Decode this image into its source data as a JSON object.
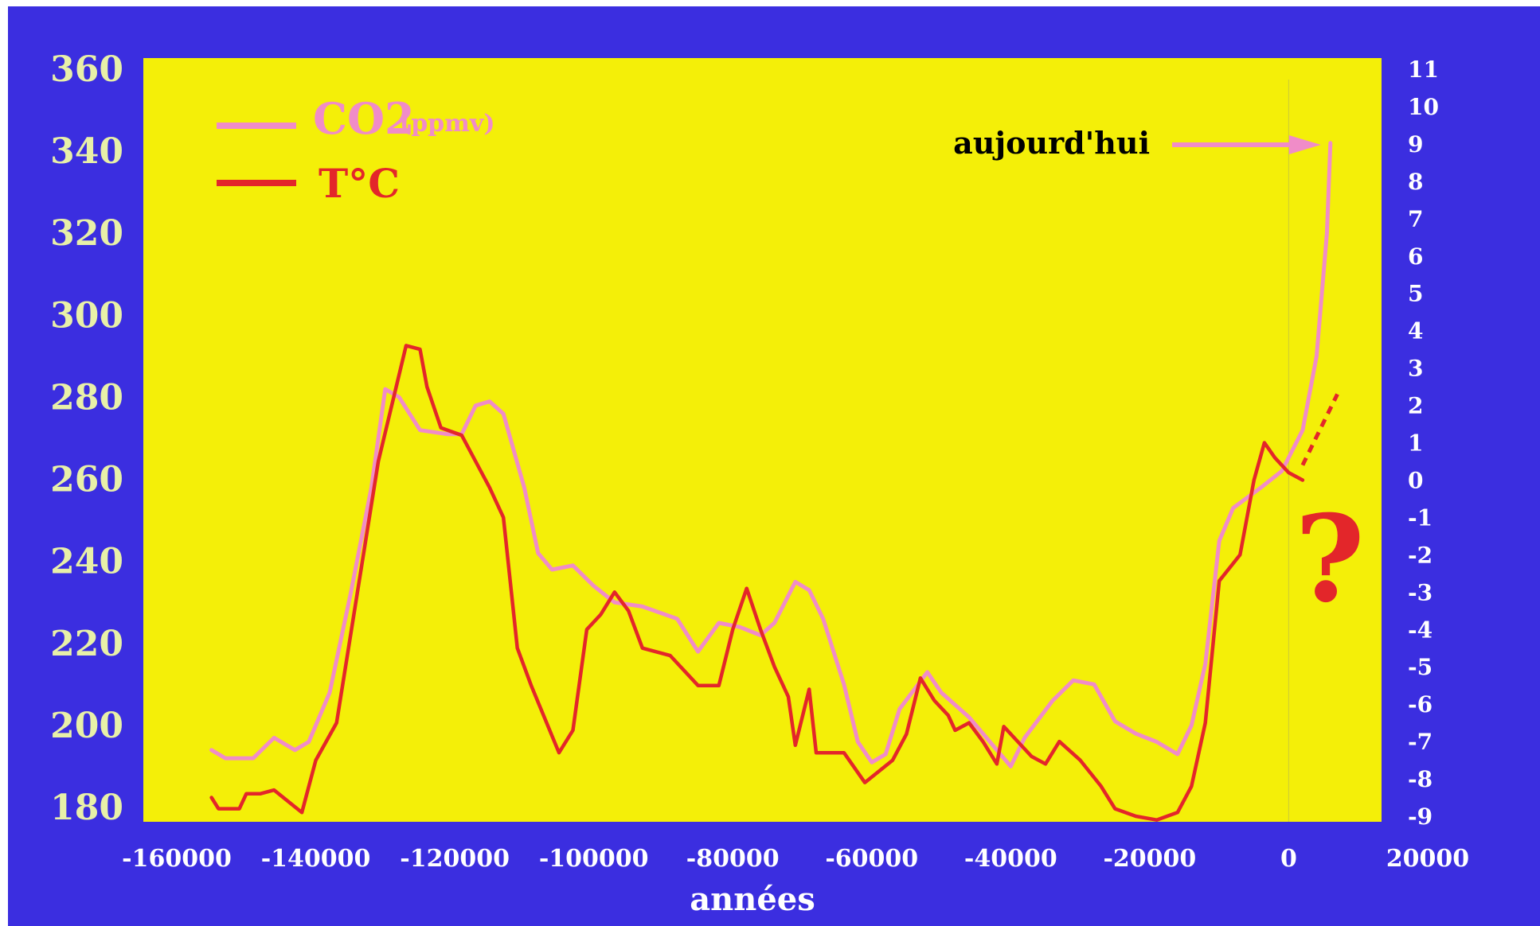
{
  "chart_data": {
    "type": "line",
    "xlabel": "années",
    "x_ticks": [
      -160000,
      -140000,
      -120000,
      -100000,
      -80000,
      -60000,
      -40000,
      -20000,
      0,
      20000
    ],
    "xlim": [
      -160000,
      20000
    ],
    "ylim_left": [
      180,
      360
    ],
    "y_ticks_left": [
      180,
      200,
      220,
      240,
      260,
      280,
      300,
      320,
      340,
      360
    ],
    "ylim_right": [
      -9,
      11
    ],
    "y_ticks_right": [
      -9,
      -8,
      -7,
      -6,
      -5,
      -4,
      -3,
      -2,
      -1,
      0,
      1,
      2,
      3,
      4,
      5,
      6,
      7,
      8,
      9,
      10,
      11
    ],
    "legend": {
      "placement": "top-left",
      "co2_main": "CO2",
      "co2_unit": "(ppmv)",
      "temp": "T°C"
    },
    "annotation": {
      "text": "aujourd'hui",
      "x": 6000,
      "y": 342
    },
    "question_mark": "?",
    "colors": {
      "co2": "#f08cc8",
      "temp": "#e3262a",
      "plot_bg": "#f4ef08",
      "frame": "#3b2ee0",
      "tick_left": "#e8f0a8",
      "tick_right": "#ffffff"
    },
    "series": [
      {
        "name": "CO2 (ppmv)",
        "axis": "left",
        "points": [
          [
            -155000,
            194
          ],
          [
            -153000,
            192
          ],
          [
            -149000,
            192
          ],
          [
            -146000,
            197
          ],
          [
            -143000,
            194
          ],
          [
            -141000,
            196
          ],
          [
            -138000,
            208
          ],
          [
            -135000,
            232
          ],
          [
            -132000,
            258
          ],
          [
            -130000,
            282
          ],
          [
            -128000,
            280
          ],
          [
            -125000,
            272
          ],
          [
            -121000,
            271
          ],
          [
            -119000,
            271
          ],
          [
            -117000,
            278
          ],
          [
            -115000,
            279
          ],
          [
            -113000,
            276
          ],
          [
            -110000,
            258
          ],
          [
            -108000,
            242
          ],
          [
            -106000,
            238
          ],
          [
            -103000,
            239
          ],
          [
            -100000,
            234
          ],
          [
            -97000,
            230
          ],
          [
            -93000,
            229
          ],
          [
            -88000,
            226
          ],
          [
            -85000,
            218
          ],
          [
            -82000,
            225
          ],
          [
            -79000,
            224
          ],
          [
            -76000,
            222
          ],
          [
            -74000,
            225
          ],
          [
            -71000,
            235
          ],
          [
            -69000,
            233
          ],
          [
            -67000,
            226
          ],
          [
            -64000,
            210
          ],
          [
            -62000,
            196
          ],
          [
            -60000,
            191
          ],
          [
            -58000,
            193
          ],
          [
            -56000,
            204
          ],
          [
            -52000,
            213
          ],
          [
            -50000,
            208
          ],
          [
            -46000,
            202
          ],
          [
            -43000,
            196
          ],
          [
            -40000,
            190
          ],
          [
            -38000,
            197
          ],
          [
            -34000,
            206
          ],
          [
            -31000,
            211
          ],
          [
            -28000,
            210
          ],
          [
            -25000,
            201
          ],
          [
            -22000,
            198
          ],
          [
            -19000,
            196
          ],
          [
            -16000,
            193
          ],
          [
            -14000,
            200
          ],
          [
            -12000,
            215
          ],
          [
            -10000,
            245
          ],
          [
            -8000,
            253
          ],
          [
            -4000,
            258
          ],
          [
            -1000,
            262
          ],
          [
            2000,
            272
          ],
          [
            4000,
            290
          ],
          [
            5500,
            320
          ],
          [
            6000,
            342
          ]
        ]
      },
      {
        "name": "T°C",
        "axis": "right",
        "points": [
          [
            -155000,
            -8.5
          ],
          [
            -154000,
            -8.8
          ],
          [
            -151000,
            -8.8
          ],
          [
            -150000,
            -8.4
          ],
          [
            -148000,
            -8.4
          ],
          [
            -146000,
            -8.3
          ],
          [
            -142000,
            -8.9
          ],
          [
            -140000,
            -7.5
          ],
          [
            -137000,
            -6.5
          ],
          [
            -134000,
            -3.0
          ],
          [
            -131000,
            0.5
          ],
          [
            -127000,
            3.6
          ],
          [
            -125000,
            3.5
          ],
          [
            -124000,
            2.5
          ],
          [
            -122000,
            1.4
          ],
          [
            -119000,
            1.2
          ],
          [
            -117000,
            0.5
          ],
          [
            -115000,
            -0.2
          ],
          [
            -113000,
            -1.0
          ],
          [
            -111000,
            -4.5
          ],
          [
            -109000,
            -5.5
          ],
          [
            -105000,
            -7.3
          ],
          [
            -103000,
            -6.7
          ],
          [
            -101000,
            -4.0
          ],
          [
            -99000,
            -3.6
          ],
          [
            -97000,
            -3.0
          ],
          [
            -95000,
            -3.5
          ],
          [
            -93000,
            -4.5
          ],
          [
            -89000,
            -4.7
          ],
          [
            -85000,
            -5.5
          ],
          [
            -82000,
            -5.5
          ],
          [
            -80000,
            -4.0
          ],
          [
            -78000,
            -2.9
          ],
          [
            -76000,
            -4.0
          ],
          [
            -74000,
            -5.0
          ],
          [
            -72000,
            -5.8
          ],
          [
            -71000,
            -7.1
          ],
          [
            -69000,
            -5.6
          ],
          [
            -68000,
            -7.3
          ],
          [
            -64000,
            -7.3
          ],
          [
            -61000,
            -8.1
          ],
          [
            -57000,
            -7.5
          ],
          [
            -55000,
            -6.8
          ],
          [
            -53000,
            -5.3
          ],
          [
            -51000,
            -5.9
          ],
          [
            -49000,
            -6.3
          ],
          [
            -48000,
            -6.7
          ],
          [
            -46000,
            -6.5
          ],
          [
            -44000,
            -7.0
          ],
          [
            -42000,
            -7.6
          ],
          [
            -41000,
            -6.6
          ],
          [
            -39000,
            -7.0
          ],
          [
            -37000,
            -7.4
          ],
          [
            -35000,
            -7.6
          ],
          [
            -33000,
            -7.0
          ],
          [
            -30000,
            -7.5
          ],
          [
            -27000,
            -8.2
          ],
          [
            -25000,
            -8.8
          ],
          [
            -22000,
            -9.0
          ],
          [
            -19000,
            -9.1
          ],
          [
            -16000,
            -8.9
          ],
          [
            -14000,
            -8.2
          ],
          [
            -12000,
            -6.5
          ],
          [
            -10000,
            -2.7
          ],
          [
            -7000,
            -2.0
          ],
          [
            -5000,
            0.0
          ],
          [
            -3500,
            1.0
          ],
          [
            -2000,
            0.6
          ],
          [
            0,
            0.2
          ],
          [
            2000,
            0.0
          ]
        ]
      }
    ]
  }
}
